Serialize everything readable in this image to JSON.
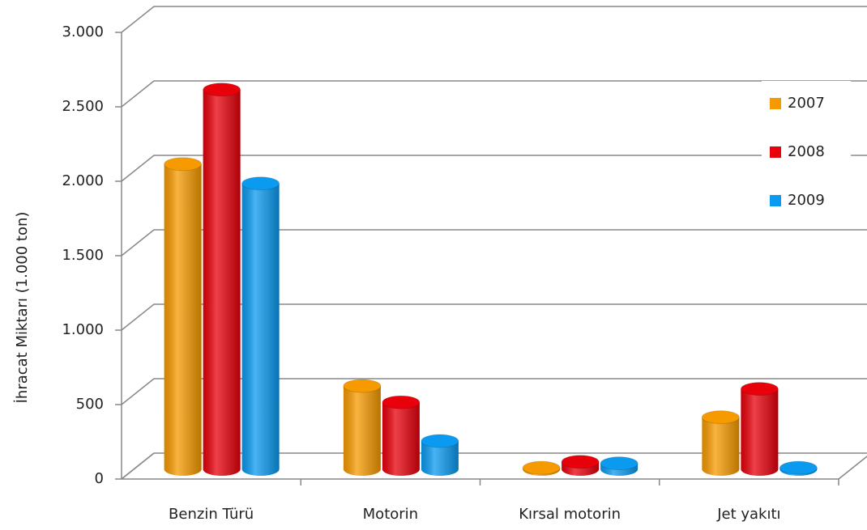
{
  "chart_data": {
    "type": "bar3d",
    "y_label": "İhracat Miktarı (1.000 ton)",
    "categories": [
      "Benzin Türü",
      "Motorin",
      "Kırsal motorin",
      "Jet yakıtı"
    ],
    "series": [
      {
        "name": "2007",
        "color": "#f79a00",
        "values": [
          2050,
          560,
          10,
          350
        ]
      },
      {
        "name": "2008",
        "color": "#e8000b",
        "values": [
          2550,
          450,
          50,
          540
        ]
      },
      {
        "name": "2009",
        "color": "#0a9af0",
        "values": [
          1920,
          190,
          40,
          10
        ]
      }
    ],
    "ylim": [
      0,
      3000
    ],
    "yticks": [
      0,
      500,
      {
        "value": 1000,
        "label": "1.000"
      },
      {
        "value": 1500,
        "label": "1.500"
      },
      {
        "value": 2000,
        "label": "2.000"
      },
      {
        "value": 2500,
        "label": "2.500"
      },
      {
        "value": 3000,
        "label": "3.000"
      }
    ],
    "grid": true,
    "legend": "right"
  }
}
